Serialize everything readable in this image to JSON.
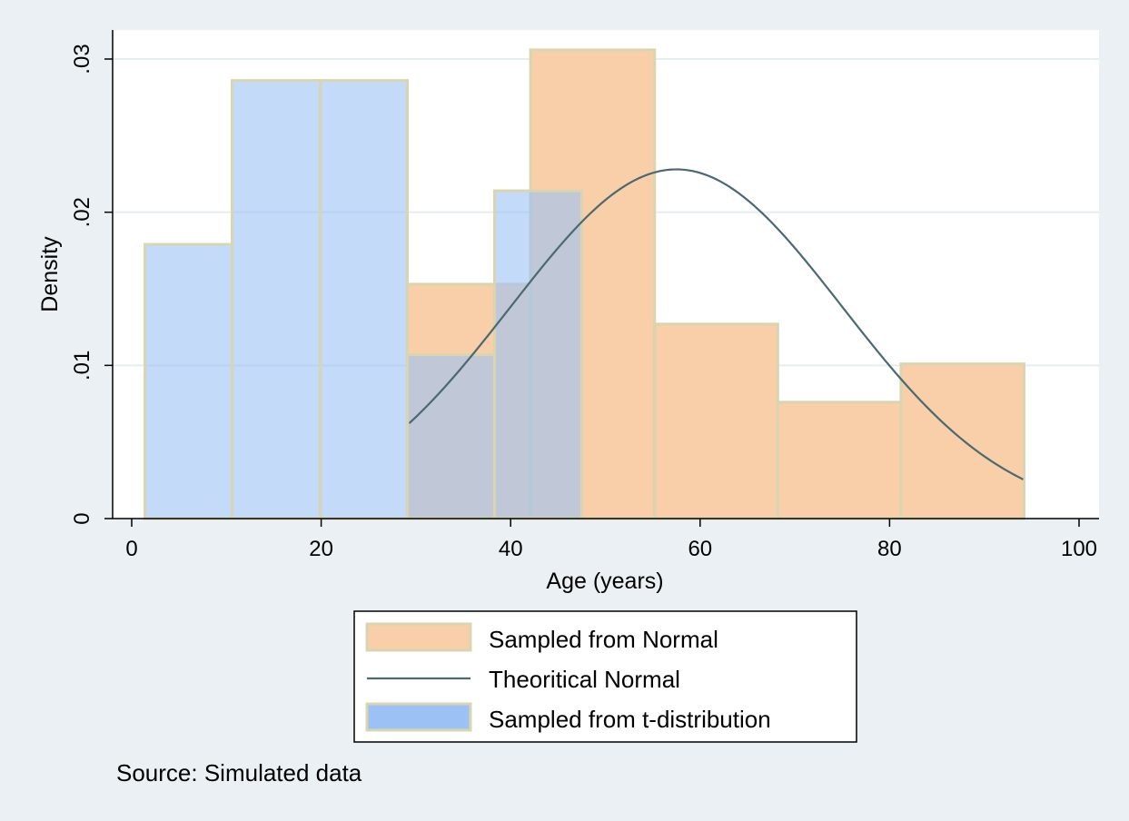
{
  "chart_data": {
    "type": "bar",
    "title": "",
    "xlabel": "Age (years)",
    "ylabel": "Density",
    "xlim": [
      0,
      100
    ],
    "ylim": [
      0,
      0.03
    ],
    "x_ticks": [
      {
        "value": 0,
        "label": "0"
      },
      {
        "value": 20,
        "label": "20"
      },
      {
        "value": 40,
        "label": "40"
      },
      {
        "value": 60,
        "label": "60"
      },
      {
        "value": 80,
        "label": "80"
      },
      {
        "value": 100,
        "label": "100"
      }
    ],
    "y_ticks": [
      {
        "value": 0,
        "label": "0"
      },
      {
        "value": 0.01,
        "label": ".01"
      },
      {
        "value": 0.02,
        "label": ".02"
      },
      {
        "value": 0.03,
        "label": ".03"
      }
    ],
    "grid": true,
    "legend_position": "bottom",
    "note": "Source: Simulated data",
    "series": [
      {
        "name": "Sampled from Normal",
        "kind": "histogram",
        "color": "#f8cfa9",
        "bins": [
          {
            "x0": 29.1,
            "x1": 42.1,
            "density": 0.0153
          },
          {
            "x0": 42.1,
            "x1": 55.2,
            "density": 0.0306
          },
          {
            "x0": 55.2,
            "x1": 68.2,
            "density": 0.0127
          },
          {
            "x0": 68.2,
            "x1": 81.2,
            "density": 0.0076
          },
          {
            "x0": 81.2,
            "x1": 94.2,
            "density": 0.0101
          }
        ]
      },
      {
        "name": "Theoritical Normal",
        "kind": "curve",
        "color": "#4a6a70",
        "mean": 57.5,
        "sd": 17.5,
        "x_range": [
          29.3,
          94.1
        ]
      },
      {
        "name": "Sampled from t-distribution",
        "kind": "histogram",
        "color": "#9bc1f5",
        "bins": [
          {
            "x0": 1.4,
            "x1": 10.6,
            "density": 0.0179
          },
          {
            "x0": 10.6,
            "x1": 19.9,
            "density": 0.0286
          },
          {
            "x0": 19.9,
            "x1": 29.1,
            "density": 0.0286
          },
          {
            "x0": 29.1,
            "x1": 38.3,
            "density": 0.0107
          },
          {
            "x0": 38.3,
            "x1": 47.5,
            "density": 0.0214
          }
        ]
      }
    ]
  },
  "colors": {
    "background": "#eaf0f3",
    "plot_area": "#ffffff",
    "bar_outline": "#d9d5b0",
    "grid": "#e6edf0",
    "axis": "#000000"
  }
}
